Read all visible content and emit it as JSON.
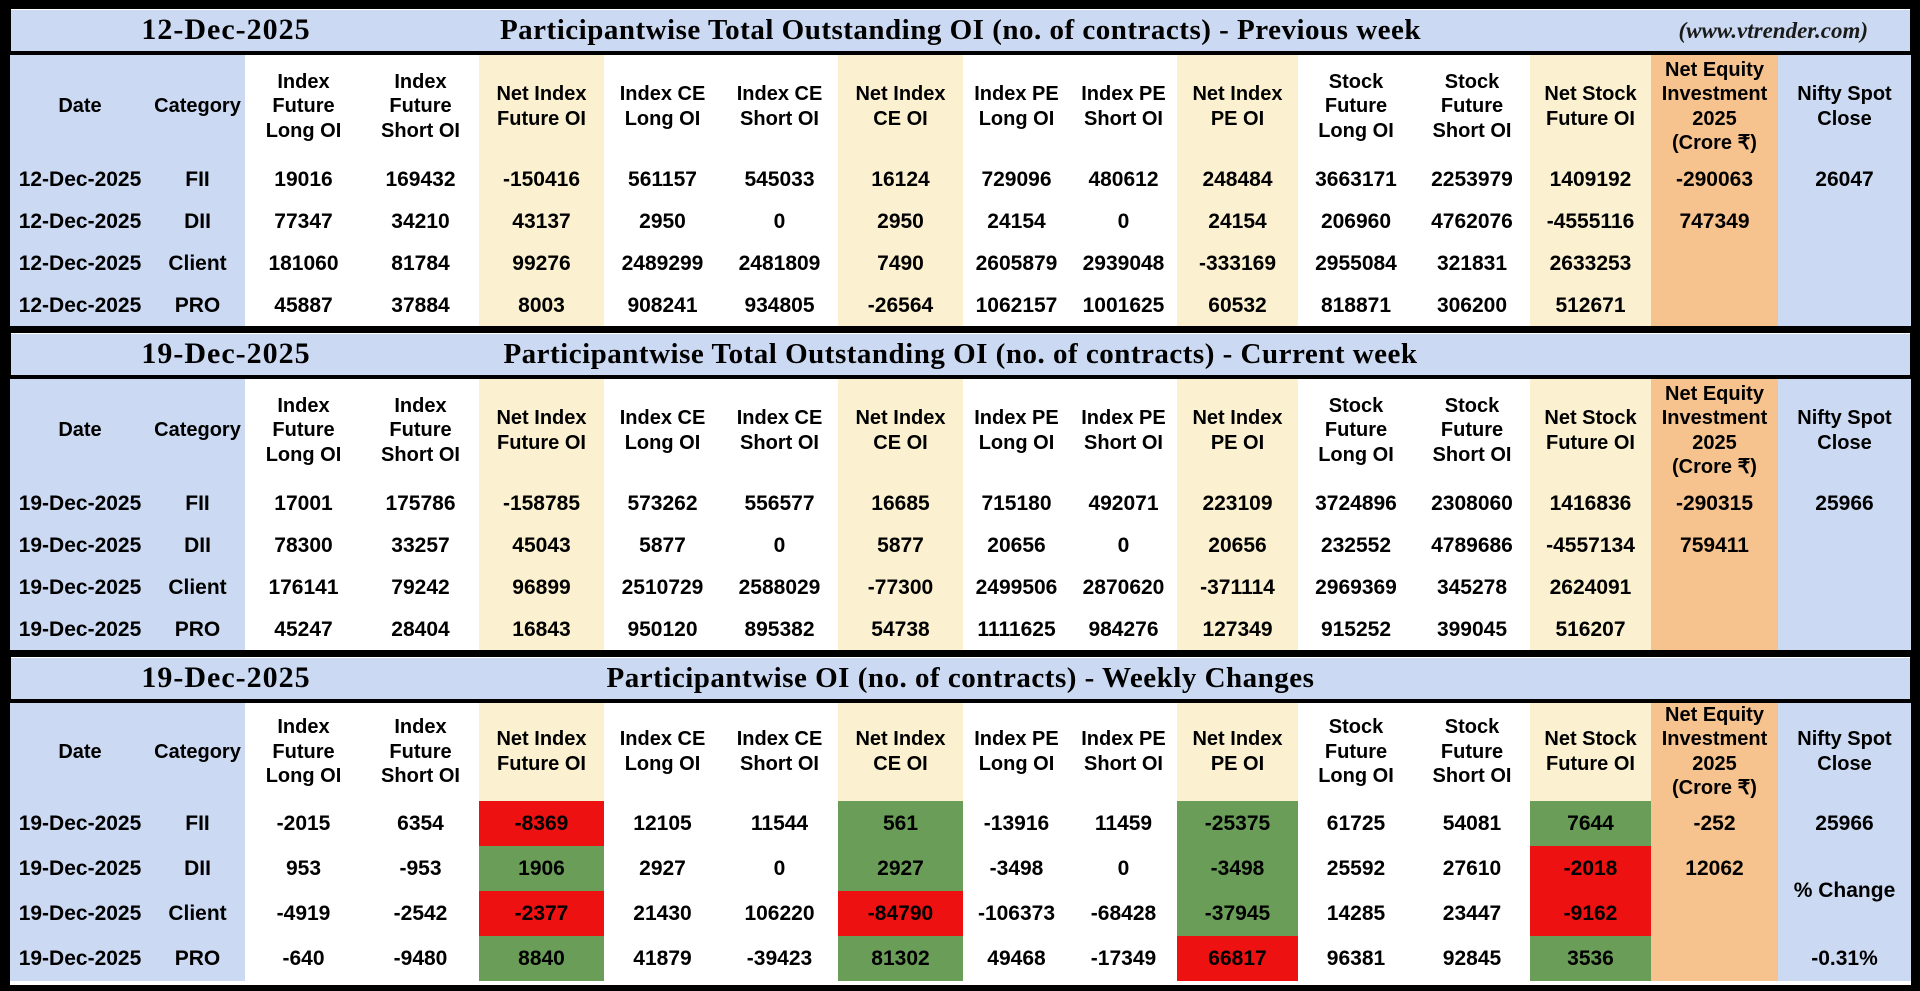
{
  "colors": {
    "accent_blue": "#cbdaf2",
    "net_column_cream": "#fbf1d0",
    "equity_column_orange": "#f6c28d",
    "negative_text_red": "#ee0a0a",
    "positive_text_green": "#377d37",
    "change_cell_red": "#ee1111",
    "change_cell_green": "#6a9e58"
  },
  "header_columns": [
    "Date",
    "Category",
    "Index\nFuture\nLong OI",
    "Index\nFuture\nShort OI",
    "Net Index\nFuture OI",
    "Index CE\nLong OI",
    "Index CE\nShort OI",
    "Net Index\nCE OI",
    "Index PE\nLong OI",
    "Index PE\nShort OI",
    "Net Index\nPE OI",
    "Stock\nFuture\nLong OI",
    "Stock\nFuture\nShort OI",
    "Net Stock\nFuture OI",
    "Net Equity\nInvestment\n2025\n(Crore ₹)",
    "Nifty Spot\nClose"
  ],
  "sections": [
    {
      "id": "previous-week",
      "date": "12-Dec-2025",
      "title": "Participantwise Total Outstanding OI (no. of contracts) - Previous week",
      "source": "(www.vtrender.com)",
      "rows": [
        {
          "cells": [
            "12-Dec-2025",
            "FII",
            "19016",
            "169432",
            {
              "v": "-150416",
              "c": "red"
            },
            "561157",
            "545033",
            {
              "v": "16124",
              "c": "green"
            },
            "729096",
            "480612",
            {
              "v": "248484",
              "c": "green"
            },
            "3663171",
            "2253979",
            {
              "v": "1409192",
              "c": "green"
            },
            {
              "v": "-290063",
              "c": "red"
            },
            "26047"
          ]
        },
        {
          "cells": [
            "12-Dec-2025",
            "DII",
            "77347",
            "34210",
            {
              "v": "43137",
              "c": "green"
            },
            "2950",
            "0",
            {
              "v": "2950",
              "c": "green"
            },
            "24154",
            "0",
            {
              "v": "24154",
              "c": "green"
            },
            "206960",
            "4762076",
            {
              "v": "-4555116",
              "c": "red"
            },
            {
              "v": "747349",
              "c": "green"
            },
            ""
          ]
        },
        {
          "cells": [
            "12-Dec-2025",
            "Client",
            "181060",
            "81784",
            {
              "v": "99276",
              "c": "green"
            },
            "2489299",
            "2481809",
            {
              "v": "7490",
              "c": "green"
            },
            "2605879",
            "2939048",
            {
              "v": "-333169",
              "c": "red"
            },
            "2955084",
            "321831",
            {
              "v": "2633253",
              "c": "green"
            },
            "",
            ""
          ]
        },
        {
          "cells": [
            "12-Dec-2025",
            "PRO",
            "45887",
            "37884",
            {
              "v": "8003",
              "c": "green"
            },
            "908241",
            "934805",
            {
              "v": "-26564",
              "c": "red"
            },
            "1062157",
            "1001625",
            {
              "v": "60532",
              "c": "green"
            },
            "818871",
            "306200",
            {
              "v": "512671",
              "c": "green"
            },
            "",
            ""
          ]
        }
      ]
    },
    {
      "id": "current-week",
      "date": "19-Dec-2025",
      "title": "Participantwise Total Outstanding OI (no. of contracts) - Current week",
      "source": "",
      "rows": [
        {
          "cells": [
            "19-Dec-2025",
            "FII",
            "17001",
            "175786",
            {
              "v": "-158785",
              "c": "red"
            },
            "573262",
            "556577",
            {
              "v": "16685",
              "c": "green"
            },
            "715180",
            "492071",
            {
              "v": "223109",
              "c": "green"
            },
            "3724896",
            "2308060",
            {
              "v": "1416836",
              "c": "green"
            },
            {
              "v": "-290315",
              "c": "red"
            },
            "25966"
          ]
        },
        {
          "cells": [
            "19-Dec-2025",
            "DII",
            "78300",
            "33257",
            {
              "v": "45043",
              "c": "green"
            },
            "5877",
            "0",
            {
              "v": "5877",
              "c": "green"
            },
            "20656",
            "0",
            {
              "v": "20656",
              "c": "green"
            },
            "232552",
            "4789686",
            {
              "v": "-4557134",
              "c": "red"
            },
            {
              "v": "759411",
              "c": "green"
            },
            ""
          ]
        },
        {
          "cells": [
            "19-Dec-2025",
            "Client",
            "176141",
            "79242",
            {
              "v": "96899",
              "c": "green"
            },
            "2510729",
            "2588029",
            {
              "v": "-77300",
              "c": "red"
            },
            "2499506",
            "2870620",
            {
              "v": "-371114",
              "c": "red"
            },
            "2969369",
            "345278",
            {
              "v": "2624091",
              "c": "green"
            },
            "",
            ""
          ]
        },
        {
          "cells": [
            "19-Dec-2025",
            "PRO",
            "45247",
            "28404",
            {
              "v": "16843",
              "c": "green"
            },
            "950120",
            "895382",
            {
              "v": "54738",
              "c": "green"
            },
            "1111625",
            "984276",
            {
              "v": "127349",
              "c": "green"
            },
            "915252",
            "399045",
            {
              "v": "516207",
              "c": "green"
            },
            "",
            ""
          ]
        }
      ]
    },
    {
      "id": "weekly-changes",
      "date": "19-Dec-2025",
      "title": "Participantwise OI (no. of contracts) - Weekly Changes",
      "source": "",
      "rows": [
        {
          "cells": [
            "19-Dec-2025",
            "FII",
            {
              "v": "-2015",
              "c": "red"
            },
            "6354",
            {
              "v": "-8369",
              "bg": "red"
            },
            "12105",
            "11544",
            {
              "v": "561",
              "bg": "green"
            },
            {
              "v": "-13916",
              "c": "red"
            },
            "11459",
            {
              "v": "-25375",
              "bg": "green"
            },
            "61725",
            "54081",
            {
              "v": "7644",
              "bg": "green"
            },
            {
              "v": "-252",
              "c": "red"
            },
            "25966"
          ]
        },
        {
          "cells": [
            "19-Dec-2025",
            "DII",
            "953",
            {
              "v": "-953",
              "c": "red"
            },
            {
              "v": "1906",
              "bg": "green"
            },
            "2927",
            "0",
            {
              "v": "2927",
              "bg": "green"
            },
            {
              "v": "-3498",
              "c": "red"
            },
            "0",
            {
              "v": "-3498",
              "bg": "green"
            },
            "25592",
            "27610",
            {
              "v": "-2018",
              "bg": "red"
            },
            {
              "v": "12062",
              "c": "green"
            },
            {
              "v": "% Change",
              "rowspan": 2,
              "cls": "pct"
            }
          ]
        },
        {
          "cells": [
            "19-Dec-2025",
            "Client",
            {
              "v": "-4919",
              "c": "red"
            },
            {
              "v": "-2542",
              "c": "red"
            },
            {
              "v": "-2377",
              "bg": "red"
            },
            "21430",
            "106220",
            {
              "v": "-84790",
              "bg": "red"
            },
            {
              "v": "-106373",
              "c": "red"
            },
            {
              "v": "-68428",
              "c": "red"
            },
            {
              "v": "-37945",
              "bg": "green"
            },
            "14285",
            "23447",
            {
              "v": "-9162",
              "bg": "red"
            },
            "",
            {
              "skip": true
            }
          ]
        },
        {
          "cells": [
            "19-Dec-2025",
            "PRO",
            {
              "v": "-640",
              "c": "red"
            },
            {
              "v": "-9480",
              "c": "red"
            },
            {
              "v": "8840",
              "bg": "green"
            },
            "41879",
            {
              "v": "-39423",
              "c": "red"
            },
            {
              "v": "81302",
              "bg": "green"
            },
            "49468",
            {
              "v": "-17349",
              "c": "red"
            },
            {
              "v": "66817",
              "bg": "red"
            },
            "96381",
            "92845",
            {
              "v": "3536",
              "bg": "green"
            },
            "",
            {
              "v": "-0.31%",
              "c": "red"
            }
          ]
        }
      ]
    }
  ]
}
